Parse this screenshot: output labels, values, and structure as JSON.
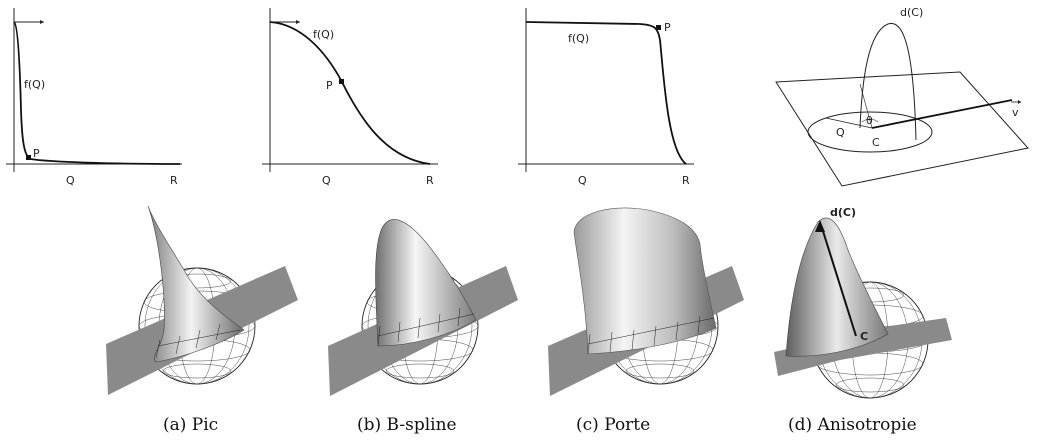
{
  "panels": [
    {
      "id": "a",
      "f_label": "f(Q)",
      "p_label": "P",
      "q_label": "Q",
      "r_label": "R",
      "caption": "(a) Pic"
    },
    {
      "id": "b",
      "f_label": "f(Q)",
      "p_label": "P",
      "q_label": "Q",
      "r_label": "R",
      "caption": "(b) B-spline"
    },
    {
      "id": "c",
      "f_label": "f(Q)",
      "p_label": "P",
      "q_label": "Q",
      "r_label": "R",
      "caption": "(c) Porte"
    },
    {
      "id": "d",
      "caption": "(d) Anisotropie"
    }
  ],
  "schematic": {
    "d_label": "d(C)",
    "theta_label": "θ",
    "q_label": "Q",
    "c_label": "C",
    "v_label": "v"
  },
  "render_d": {
    "d_label": "d(C)",
    "c_label": "C"
  },
  "colors": {
    "plane": "#8a8a8a",
    "surface_light": "#f2f2f2",
    "surface_dark": "#6e6e6e",
    "wire": "#333333"
  }
}
